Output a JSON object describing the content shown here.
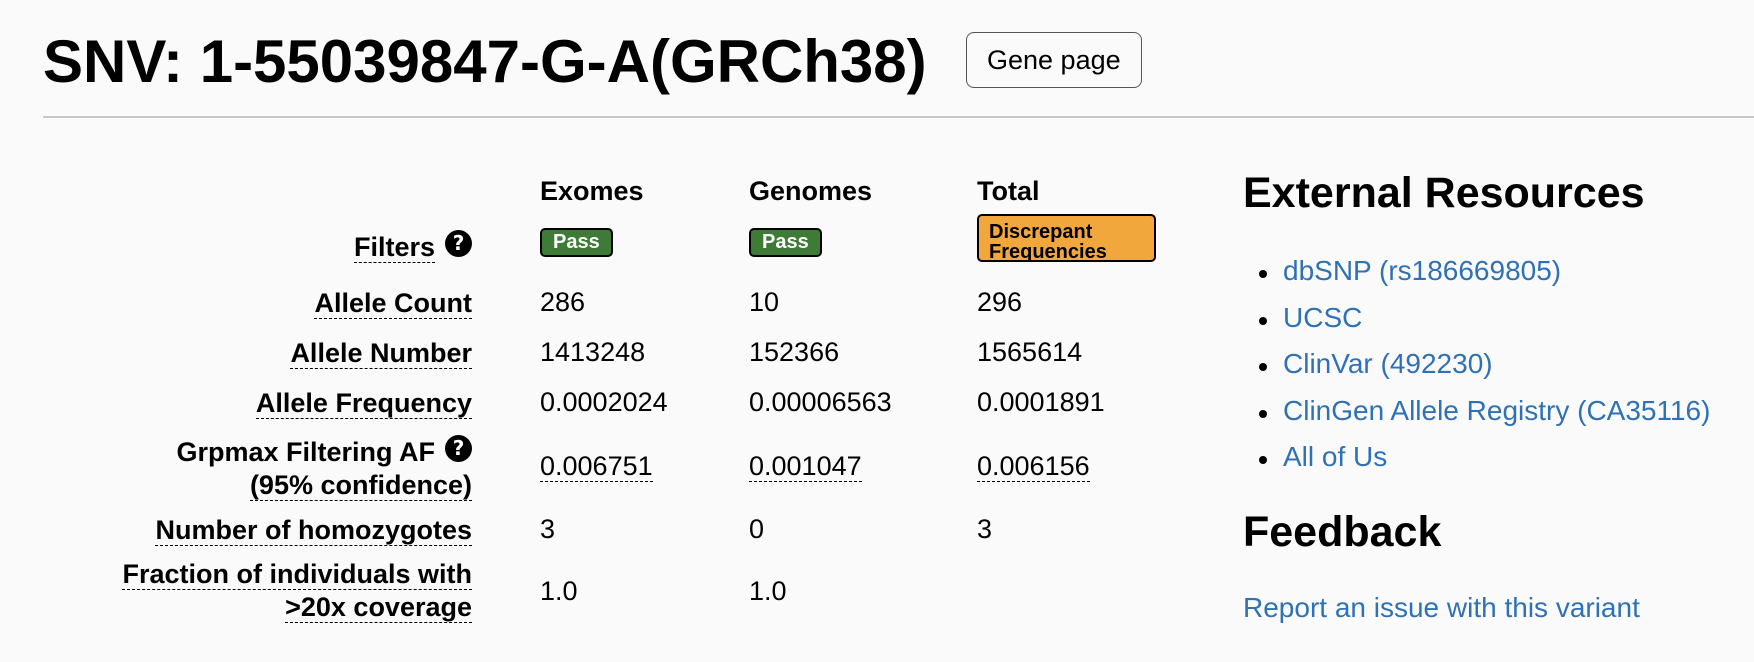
{
  "header": {
    "title": "SNV: 1-55039847-G-A(GRCh38)",
    "gene_page_label": "Gene page"
  },
  "table": {
    "columns": [
      "Exomes",
      "Genomes",
      "Total"
    ],
    "help_glyph": "?",
    "rows": [
      {
        "label": "Filters",
        "has_help": true,
        "badges": [
          "Pass",
          "Pass",
          "Discrepant Frequencies"
        ]
      },
      {
        "label": "Allele Count",
        "values": [
          "286",
          "10",
          "296"
        ]
      },
      {
        "label": "Allele Number",
        "values": [
          "1413248",
          "152366",
          "1565614"
        ]
      },
      {
        "label": "Allele Frequency",
        "values": [
          "0.0002024",
          "0.00006563",
          "0.0001891"
        ]
      },
      {
        "label_line1": "Grpmax Filtering AF",
        "label_line2": "(95% confidence)",
        "has_help": true,
        "values": [
          "0.006751",
          "0.001047",
          "0.006156"
        ]
      },
      {
        "label": "Number of homozygotes",
        "values": [
          "3",
          "0",
          "3"
        ]
      },
      {
        "label_line1": "Fraction of individuals with",
        "label_line2": ">20x coverage",
        "values": [
          "1.0",
          "1.0",
          ""
        ]
      }
    ],
    "badge_colors": {
      "pass": "#3d7b37",
      "discrepant": "#f2a73d"
    }
  },
  "external_resources": {
    "heading": "External Resources",
    "links": [
      "dbSNP (rs186669805)",
      "UCSC",
      "ClinVar (492230)",
      "ClinGen Allele Registry (CA35116)",
      "All of Us"
    ],
    "link_color": "#2f71b5"
  },
  "feedback": {
    "heading": "Feedback",
    "report_link": "Report an issue with this variant"
  }
}
